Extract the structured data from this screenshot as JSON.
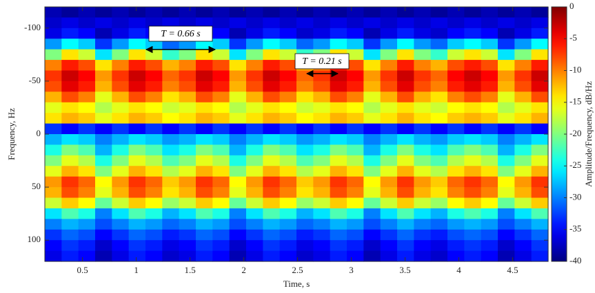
{
  "chart_data": {
    "type": "heatmap",
    "xlabel": "Time, s",
    "ylabel": "Frequency, Hz",
    "colorbar_label": "Amplitude/Frequency, dB/Hz",
    "colormap": "jet",
    "clim": [
      -40,
      0
    ],
    "cticks": [
      0,
      -5,
      -10,
      -15,
      -20,
      -25,
      -30,
      -35,
      -40
    ],
    "xlim": [
      0.15,
      4.83
    ],
    "xticks": [
      0.5,
      1,
      1.5,
      2,
      2.5,
      3,
      3.5,
      4,
      4.5
    ],
    "ylim": [
      -120,
      120
    ],
    "y_reversed": true,
    "yticks": [
      -100,
      -50,
      0,
      50,
      100
    ],
    "annotations": [
      {
        "text": "T = 0.66 s"
      },
      {
        "text": "T = 0.21 s"
      }
    ],
    "x": [
      0.228,
      0.384,
      0.54,
      0.696,
      0.852,
      1.008,
      1.164,
      1.32,
      1.476,
      1.632,
      1.788,
      1.944,
      2.1,
      2.256,
      2.412,
      2.568,
      2.724,
      2.88,
      3.036,
      3.192,
      3.348,
      3.504,
      3.66,
      3.816,
      3.972,
      4.128,
      4.284,
      4.44,
      4.596,
      4.752
    ],
    "y": [
      -115,
      -105,
      -95,
      -85,
      -75,
      -65,
      -55,
      -45,
      -35,
      -25,
      -15,
      -5,
      5,
      15,
      25,
      35,
      45,
      55,
      65,
      75,
      85,
      95,
      105,
      115
    ],
    "values": [
      [
        -38,
        -39,
        -38,
        -39,
        -38,
        -39,
        -38,
        -39,
        -38,
        -39,
        -38,
        -39,
        -38,
        -39,
        -38,
        -39,
        -38,
        -39,
        -38,
        -39,
        -38,
        -39,
        -38,
        -39,
        -38,
        -39,
        -38,
        -39,
        -38,
        -39
      ],
      [
        -37,
        -36,
        -37,
        -36,
        -37,
        -36,
        -37,
        -36,
        -37,
        -36,
        -37,
        -36,
        -37,
        -36,
        -37,
        -36,
        -37,
        -36,
        -37,
        -36,
        -37,
        -36,
        -37,
        -36,
        -37,
        -36,
        -37,
        -36,
        -37,
        -36
      ],
      [
        -36,
        -34,
        -35,
        -38,
        -36,
        -34,
        -35,
        -37,
        -36,
        -34,
        -35,
        -38,
        -36,
        -34,
        -35,
        -37,
        -36,
        -34,
        -35,
        -38,
        -36,
        -34,
        -36,
        -37,
        -35,
        -34,
        -35,
        -38,
        -36,
        -34
      ],
      [
        -29,
        -25,
        -27,
        -33,
        -29,
        -25,
        -27,
        -31,
        -29,
        -25,
        -27,
        -33,
        -29,
        -25,
        -27,
        -31,
        -29,
        -25,
        -27,
        -33,
        -29,
        -25,
        -29,
        -31,
        -27,
        -25,
        -27,
        -33,
        -29,
        -25
      ],
      [
        -20,
        -14,
        -17,
        -26,
        -20,
        -14,
        -17,
        -23,
        -20,
        -14,
        -17,
        -26,
        -20,
        -14,
        -17,
        -23,
        -20,
        -14,
        -17,
        -26,
        -20,
        -14,
        -20,
        -23,
        -17,
        -14,
        -17,
        -26,
        -20,
        -14
      ],
      [
        -10,
        -6,
        -8,
        -14,
        -10,
        -6,
        -8,
        -12,
        -10,
        -6,
        -8,
        -14,
        -10,
        -6,
        -8,
        -12,
        -10,
        -6,
        -8,
        -14,
        -10,
        -6,
        -10,
        -12,
        -8,
        -6,
        -8,
        -14,
        -10,
        -6
      ],
      [
        -7,
        -3,
        -5,
        -11,
        -7,
        -3,
        -5,
        -9,
        -7,
        -3,
        -5,
        -11,
        -7,
        -3,
        -5,
        -9,
        -7,
        -3,
        -5,
        -11,
        -7,
        -3,
        -7,
        -9,
        -5,
        -3,
        -5,
        -11,
        -7,
        -3
      ],
      [
        -8,
        -4,
        -6,
        -12,
        -8,
        -4,
        -6,
        -10,
        -8,
        -4,
        -6,
        -12,
        -8,
        -4,
        -6,
        -10,
        -8,
        -4,
        -6,
        -12,
        -8,
        -4,
        -8,
        -10,
        -6,
        -4,
        -6,
        -12,
        -8,
        -4
      ],
      [
        -12,
        -8,
        -10,
        -16,
        -12,
        -8,
        -10,
        -14,
        -12,
        -8,
        -10,
        -16,
        -12,
        -8,
        -10,
        -14,
        -12,
        -8,
        -10,
        -16,
        -12,
        -8,
        -12,
        -14,
        -10,
        -8,
        -10,
        -16,
        -12,
        -8
      ],
      [
        -16,
        -14,
        -15,
        -18,
        -16,
        -14,
        -15,
        -17,
        -16,
        -14,
        -15,
        -18,
        -16,
        -14,
        -15,
        -17,
        -16,
        -14,
        -15,
        -18,
        -16,
        -14,
        -16,
        -17,
        -15,
        -14,
        -15,
        -18,
        -16,
        -14
      ],
      [
        -14,
        -12,
        -13,
        -16,
        -14,
        -12,
        -13,
        -15,
        -14,
        -12,
        -13,
        -16,
        -14,
        -12,
        -13,
        -15,
        -14,
        -12,
        -13,
        -16,
        -14,
        -12,
        -14,
        -15,
        -13,
        -12,
        -13,
        -16,
        -14,
        -12
      ],
      [
        -33,
        -35,
        -33,
        -35,
        -33,
        -35,
        -33,
        -35,
        -33,
        -35,
        -33,
        -35,
        -33,
        -35,
        -33,
        -35,
        -33,
        -35,
        -33,
        -35,
        -33,
        -35,
        -33,
        -35,
        -33,
        -35,
        -33,
        -35,
        -33,
        -35
      ],
      [
        -28,
        -26,
        -27,
        -30,
        -28,
        -26,
        -27,
        -29,
        -28,
        -26,
        -27,
        -30,
        -28,
        -26,
        -27,
        -29,
        -28,
        -26,
        -27,
        -30,
        -28,
        -26,
        -28,
        -29,
        -27,
        -26,
        -27,
        -30,
        -28,
        -26
      ],
      [
        -24,
        -20,
        -22,
        -28,
        -24,
        -20,
        -22,
        -26,
        -24,
        -20,
        -22,
        -28,
        -24,
        -20,
        -22,
        -26,
        -24,
        -20,
        -22,
        -28,
        -24,
        -20,
        -24,
        -26,
        -22,
        -20,
        -22,
        -28,
        -24,
        -20
      ],
      [
        -20,
        -16,
        -18,
        -24,
        -20,
        -16,
        -18,
        -22,
        -20,
        -16,
        -18,
        -24,
        -20,
        -16,
        -18,
        -22,
        -20,
        -16,
        -18,
        -24,
        -20,
        -16,
        -20,
        -22,
        -18,
        -16,
        -18,
        -24,
        -20,
        -16
      ],
      [
        -16,
        -12,
        -14,
        -20,
        -16,
        -12,
        -14,
        -18,
        -16,
        -12,
        -14,
        -20,
        -16,
        -12,
        -14,
        -18,
        -16,
        -12,
        -14,
        -20,
        -16,
        -12,
        -16,
        -18,
        -14,
        -12,
        -14,
        -20,
        -16,
        -12
      ],
      [
        -11,
        -7,
        -9,
        -15,
        -11,
        -7,
        -9,
        -13,
        -11,
        -7,
        -9,
        -15,
        -11,
        -7,
        -9,
        -13,
        -11,
        -7,
        -9,
        -15,
        -11,
        -7,
        -11,
        -13,
        -9,
        -7,
        -9,
        -15,
        -11,
        -7
      ],
      [
        -12,
        -8,
        -10,
        -16,
        -12,
        -8,
        -10,
        -14,
        -12,
        -8,
        -10,
        -16,
        -12,
        -8,
        -10,
        -14,
        -12,
        -8,
        -10,
        -16,
        -12,
        -8,
        -12,
        -14,
        -10,
        -8,
        -10,
        -16,
        -12,
        -8
      ],
      [
        -17,
        -13,
        -15,
        -21,
        -17,
        -13,
        -15,
        -19,
        -17,
        -13,
        -15,
        -21,
        -17,
        -13,
        -15,
        -19,
        -17,
        -13,
        -15,
        -21,
        -17,
        -13,
        -17,
        -19,
        -15,
        -13,
        -15,
        -21,
        -17,
        -13
      ],
      [
        -26,
        -22,
        -24,
        -30,
        -26,
        -22,
        -24,
        -28,
        -26,
        -22,
        -24,
        -30,
        -26,
        -22,
        -24,
        -28,
        -26,
        -22,
        -24,
        -30,
        -26,
        -22,
        -26,
        -28,
        -24,
        -22,
        -24,
        -30,
        -26,
        -22
      ],
      [
        -30,
        -28,
        -29,
        -32,
        -30,
        -28,
        -29,
        -31,
        -30,
        -28,
        -29,
        -32,
        -30,
        -28,
        -29,
        -31,
        -30,
        -28,
        -29,
        -32,
        -30,
        -28,
        -30,
        -31,
        -29,
        -28,
        -29,
        -32,
        -30,
        -28
      ],
      [
        -33,
        -31,
        -32,
        -35,
        -33,
        -31,
        -32,
        -34,
        -33,
        -31,
        -32,
        -35,
        -33,
        -31,
        -32,
        -34,
        -33,
        -31,
        -32,
        -35,
        -33,
        -31,
        -33,
        -34,
        -32,
        -31,
        -32,
        -35,
        -33,
        -31
      ],
      [
        -35,
        -33,
        -34,
        -37,
        -35,
        -33,
        -34,
        -36,
        -35,
        -33,
        -34,
        -37,
        -35,
        -33,
        -34,
        -36,
        -35,
        -33,
        -34,
        -37,
        -35,
        -33,
        -35,
        -36,
        -34,
        -33,
        -34,
        -37,
        -35,
        -33
      ],
      [
        -36,
        -34,
        -35,
        -38,
        -36,
        -34,
        -35,
        -37,
        -36,
        -34,
        -35,
        -38,
        -36,
        -34,
        -35,
        -37,
        -36,
        -34,
        -35,
        -38,
        -36,
        -34,
        -36,
        -37,
        -35,
        -34,
        -35,
        -38,
        -36,
        -34
      ]
    ]
  }
}
